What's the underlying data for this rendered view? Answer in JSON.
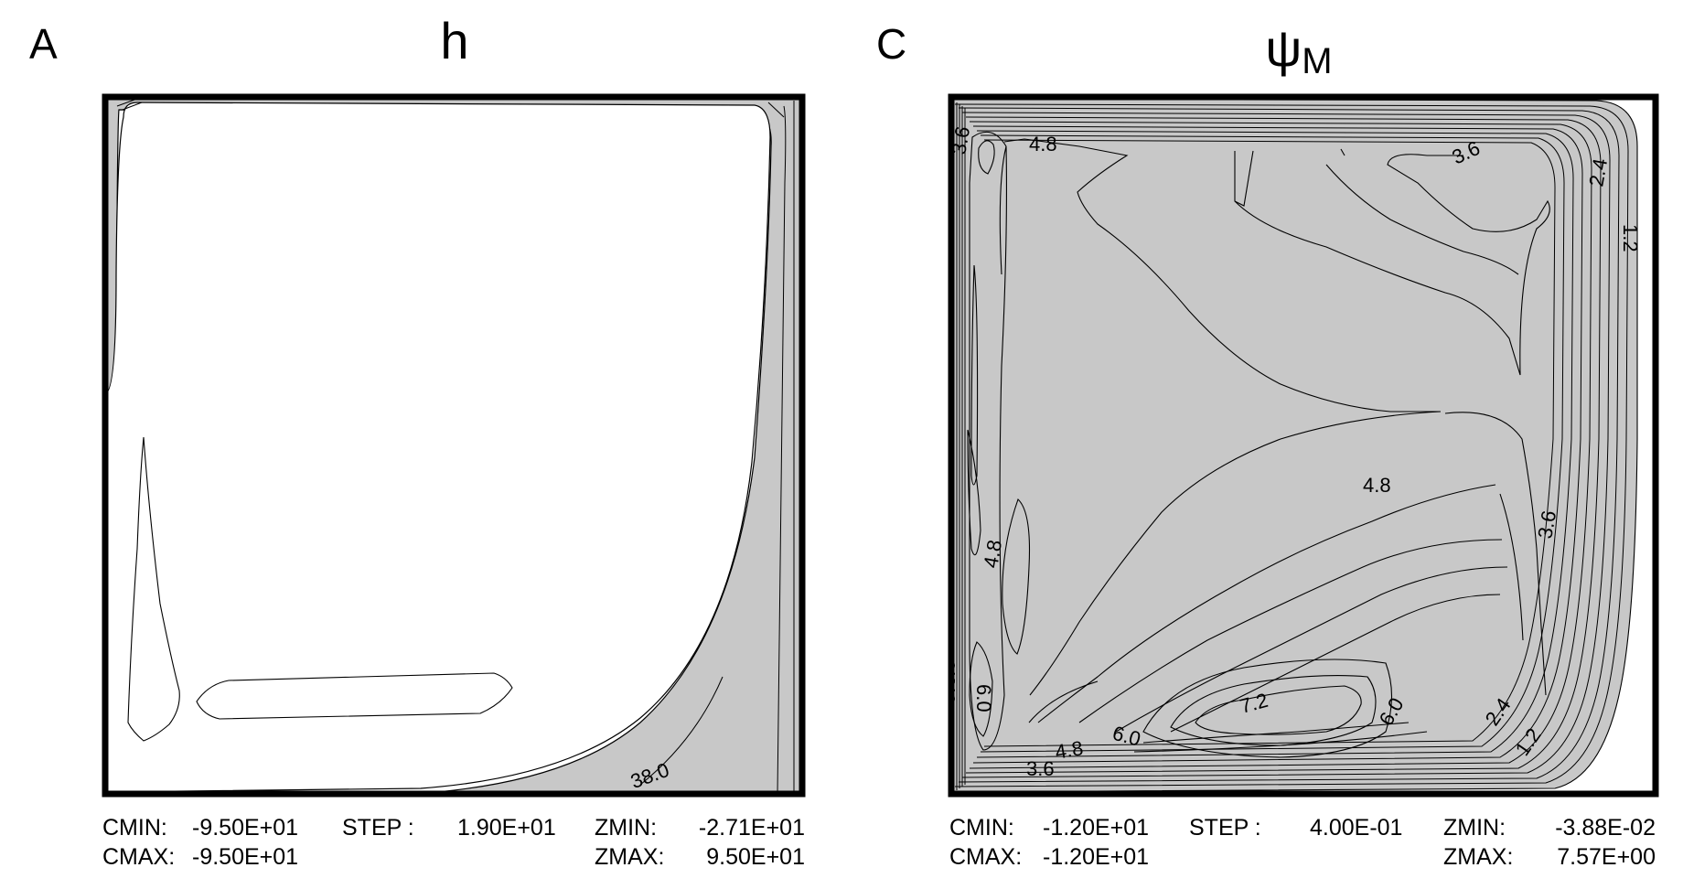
{
  "panels": [
    {
      "letter": "A",
      "title": "h",
      "contour_labels": [
        "38.0"
      ],
      "stats": {
        "cmin_label": "CMIN:",
        "cmin_value": "-9.50E+01",
        "cmax_label": "CMAX:",
        "cmax_value": "-9.50E+01",
        "step_label": "STEP :",
        "step_value": "1.90E+01",
        "zmin_label": "ZMIN:",
        "zmin_value": "-2.71E+01",
        "zmax_label": "ZMAX:",
        "zmax_value": "9.50E+01"
      }
    },
    {
      "letter": "C",
      "title": "ψ",
      "title_subscript": "M",
      "contour_labels": [
        "4.8",
        "3.6",
        "3.6",
        "2.4",
        "1.2",
        "4.8",
        "3.6",
        "4.8",
        "7.2",
        "6.0",
        "6.0",
        "4.8",
        "3.6",
        "2.4",
        "1.2",
        "6.0",
        "3.6",
        "4.8"
      ],
      "stats": {
        "cmin_label": "CMIN:",
        "cmin_value": "-1.20E+01",
        "cmax_label": "CMAX:",
        "cmax_value": "-1.20E+01",
        "step_label": "STEP :",
        "step_value": "4.00E-01",
        "zmin_label": "ZMIN:",
        "zmin_value": "-3.88E-02",
        "zmax_label": "ZMAX:",
        "zmax_value": "7.57E+00"
      }
    }
  ],
  "colors": {
    "fill": "#c8c8c8",
    "line": "#000000",
    "frame": "#000000"
  }
}
